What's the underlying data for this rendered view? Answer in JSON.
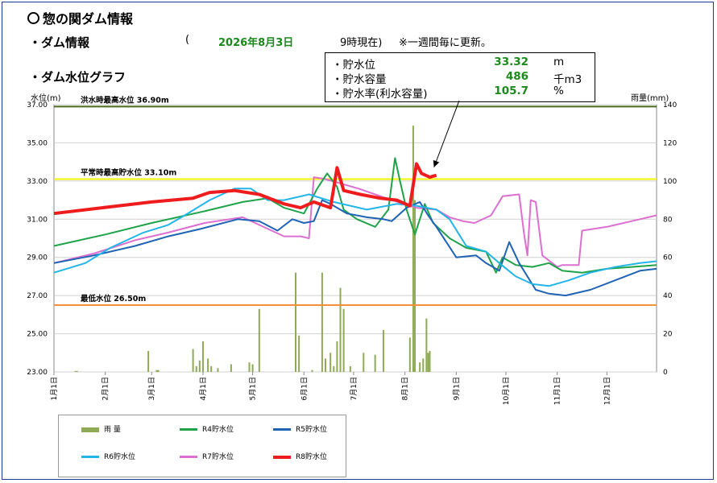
{
  "header": {
    "title": "惣の関ダム情報",
    "dam_info_label": "・ダム情報",
    "update_open": "(",
    "update_date": "2026年8月3日",
    "update_time": "9時現在)",
    "update_note": "※一週間毎に更新。",
    "graph_label": "・ダム水位グラフ"
  },
  "infobox": {
    "rows": [
      {
        "label": "・貯水位",
        "value": "33.32",
        "unit": "m"
      },
      {
        "label": "・貯水容量",
        "value": "486",
        "unit": "千m3"
      },
      {
        "label": "・貯水率(利水容量)",
        "value": "105.7",
        "unit": "%"
      }
    ]
  },
  "colors": {
    "rain": "#8faa55",
    "r4": "#1fa34a",
    "r5": "#1f63b5",
    "r6": "#22b5e8",
    "r7": "#dd6fd0",
    "r8": "#ee1c1c",
    "flood_line": "#4a6b1e",
    "normal_line": "#f4f400",
    "min_line": "#f4903a"
  },
  "chart_data": {
    "type": "line",
    "ylabel_left": "水位(m)",
    "ylabel_right": "雨量(mm)",
    "ylim_left": [
      23.0,
      37.0
    ],
    "ylim_right": [
      0,
      140
    ],
    "y_ticks_left": [
      "23.00",
      "25.00",
      "27.00",
      "29.00",
      "31.00",
      "33.00",
      "35.00",
      "37.00"
    ],
    "y_ticks_right": [
      "0",
      "20",
      "40",
      "60",
      "80",
      "100",
      "120",
      "140"
    ],
    "x_ticks": [
      "1月1日",
      "2月1日",
      "3月1日",
      "4月1日",
      "5月1日",
      "6月1日",
      "7月1日",
      "8月1日",
      "9月1日",
      "10月1日",
      "11月1日",
      "12月1日"
    ],
    "x_unit": "day_of_year",
    "reference_lines": [
      {
        "label": "洪水時最高水位 36.90m",
        "value": 36.9
      },
      {
        "label": "平常時最高貯水位 33.10m",
        "value": 33.1
      },
      {
        "label": "最低水位 26.50m",
        "value": 26.5
      }
    ],
    "legend_placement": "bottom-left",
    "series": [
      {
        "name": "R4貯水位",
        "key": "r4",
        "points": [
          [
            1,
            29.6
          ],
          [
            32,
            30.2
          ],
          [
            60,
            30.8
          ],
          [
            91,
            31.4
          ],
          [
            115,
            31.9
          ],
          [
            130,
            32.1
          ],
          [
            140,
            31.6
          ],
          [
            152,
            31.3
          ],
          [
            160,
            32.6
          ],
          [
            166,
            33.4
          ],
          [
            172,
            32.7
          ],
          [
            176,
            31.5
          ],
          [
            184,
            31.0
          ],
          [
            195,
            30.6
          ],
          [
            203,
            31.5
          ],
          [
            207,
            34.2
          ],
          [
            210,
            33.0
          ],
          [
            214,
            31.5
          ],
          [
            219,
            30.2
          ],
          [
            225,
            31.8
          ],
          [
            230,
            30.8
          ],
          [
            240,
            30.0
          ],
          [
            250,
            29.5
          ],
          [
            262,
            29.3
          ],
          [
            268,
            28.2
          ],
          [
            272,
            29.0
          ],
          [
            280,
            28.6
          ],
          [
            290,
            28.5
          ],
          [
            300,
            28.7
          ],
          [
            308,
            28.3
          ],
          [
            320,
            28.2
          ],
          [
            335,
            28.4
          ],
          [
            350,
            28.5
          ],
          [
            365,
            28.6
          ]
        ]
      },
      {
        "name": "R5貯水位",
        "key": "r5",
        "points": [
          [
            1,
            28.7
          ],
          [
            25,
            29.1
          ],
          [
            50,
            29.6
          ],
          [
            70,
            30.1
          ],
          [
            90,
            30.5
          ],
          [
            112,
            31.0
          ],
          [
            125,
            30.9
          ],
          [
            136,
            30.4
          ],
          [
            145,
            31.0
          ],
          [
            152,
            30.8
          ],
          [
            158,
            30.9
          ],
          [
            163,
            32.0
          ],
          [
            168,
            31.8
          ],
          [
            178,
            31.3
          ],
          [
            190,
            31.1
          ],
          [
            200,
            31.0
          ],
          [
            205,
            30.9
          ],
          [
            214,
            31.6
          ],
          [
            222,
            31.9
          ],
          [
            227,
            31.2
          ],
          [
            232,
            30.6
          ],
          [
            244,
            29.0
          ],
          [
            256,
            29.1
          ],
          [
            262,
            28.7
          ],
          [
            270,
            28.3
          ],
          [
            276,
            29.8
          ],
          [
            282,
            28.7
          ],
          [
            292,
            27.3
          ],
          [
            300,
            27.1
          ],
          [
            310,
            27.0
          ],
          [
            325,
            27.3
          ],
          [
            340,
            27.8
          ],
          [
            355,
            28.3
          ],
          [
            365,
            28.4
          ]
        ]
      },
      {
        "name": "R6貯水位",
        "key": "r6",
        "points": [
          [
            1,
            28.2
          ],
          [
            20,
            28.7
          ],
          [
            35,
            29.5
          ],
          [
            55,
            30.3
          ],
          [
            70,
            30.7
          ],
          [
            80,
            31.2
          ],
          [
            95,
            32.0
          ],
          [
            110,
            32.6
          ],
          [
            120,
            32.6
          ],
          [
            130,
            32.0
          ],
          [
            140,
            32.0
          ],
          [
            155,
            32.3
          ],
          [
            170,
            31.9
          ],
          [
            190,
            31.5
          ],
          [
            208,
            31.8
          ],
          [
            220,
            31.7
          ],
          [
            232,
            31.5
          ],
          [
            240,
            31.0
          ],
          [
            250,
            29.6
          ],
          [
            262,
            29.3
          ],
          [
            270,
            28.7
          ],
          [
            280,
            28.0
          ],
          [
            290,
            27.6
          ],
          [
            300,
            27.5
          ],
          [
            312,
            27.8
          ],
          [
            325,
            28.2
          ],
          [
            340,
            28.5
          ],
          [
            355,
            28.7
          ],
          [
            365,
            28.8
          ]
        ]
      },
      {
        "name": "R7貯水位",
        "key": "r7",
        "points": [
          [
            1,
            28.7
          ],
          [
            25,
            29.2
          ],
          [
            50,
            29.9
          ],
          [
            70,
            30.3
          ],
          [
            92,
            30.8
          ],
          [
            115,
            31.1
          ],
          [
            130,
            30.5
          ],
          [
            140,
            30.1
          ],
          [
            150,
            30.1
          ],
          [
            155,
            30.0
          ],
          [
            158,
            33.2
          ],
          [
            165,
            33.1
          ],
          [
            185,
            32.6
          ],
          [
            205,
            32.0
          ],
          [
            220,
            31.6
          ],
          [
            232,
            31.5
          ],
          [
            240,
            31.1
          ],
          [
            248,
            30.9
          ],
          [
            255,
            30.8
          ],
          [
            265,
            31.2
          ],
          [
            272,
            32.2
          ],
          [
            282,
            32.3
          ],
          [
            285,
            30.2
          ],
          [
            287,
            29.1
          ],
          [
            289,
            32.0
          ],
          [
            292,
            31.9
          ],
          [
            296,
            29.1
          ],
          [
            305,
            28.5
          ],
          [
            308,
            28.6
          ],
          [
            318,
            28.6
          ],
          [
            320,
            30.4
          ],
          [
            335,
            30.6
          ],
          [
            350,
            30.9
          ],
          [
            365,
            31.2
          ]
        ]
      },
      {
        "name": "R8貯水位",
        "key": "r8",
        "points": [
          [
            1,
            31.3
          ],
          [
            30,
            31.6
          ],
          [
            60,
            31.9
          ],
          [
            85,
            32.1
          ],
          [
            95,
            32.4
          ],
          [
            110,
            32.5
          ],
          [
            125,
            32.3
          ],
          [
            140,
            31.8
          ],
          [
            150,
            31.6
          ],
          [
            158,
            31.9
          ],
          [
            168,
            31.6
          ],
          [
            172,
            33.7
          ],
          [
            176,
            32.5
          ],
          [
            186,
            32.3
          ],
          [
            198,
            32.1
          ],
          [
            208,
            32.0
          ],
          [
            216,
            31.7
          ],
          [
            220,
            33.9
          ],
          [
            223,
            33.4
          ],
          [
            228,
            33.2
          ],
          [
            232,
            33.3
          ]
        ]
      }
    ],
    "rain": {
      "name": "雨 量",
      "points": [
        [
          14,
          0.5
        ],
        [
          15,
          0.5
        ],
        [
          58,
          11
        ],
        [
          63,
          1
        ],
        [
          64,
          1
        ],
        [
          85,
          12
        ],
        [
          87,
          3
        ],
        [
          89,
          6
        ],
        [
          91,
          16
        ],
        [
          94,
          7
        ],
        [
          96,
          3
        ],
        [
          100,
          2
        ],
        [
          108,
          4
        ],
        [
          119,
          5
        ],
        [
          121,
          4
        ],
        [
          125,
          33
        ],
        [
          147,
          52
        ],
        [
          149,
          19
        ],
        [
          157,
          1
        ],
        [
          163,
          52
        ],
        [
          165,
          7
        ],
        [
          168,
          10
        ],
        [
          170,
          3
        ],
        [
          172,
          16
        ],
        [
          174,
          44
        ],
        [
          176,
          33
        ],
        [
          180,
          3
        ],
        [
          188,
          10
        ],
        [
          195,
          9
        ],
        [
          200,
          22
        ],
        [
          216,
          18
        ],
        [
          218,
          129
        ],
        [
          219,
          90
        ],
        [
          222,
          5
        ],
        [
          224,
          7
        ],
        [
          226,
          28
        ],
        [
          227,
          10
        ],
        [
          228,
          11
        ]
      ]
    }
  }
}
